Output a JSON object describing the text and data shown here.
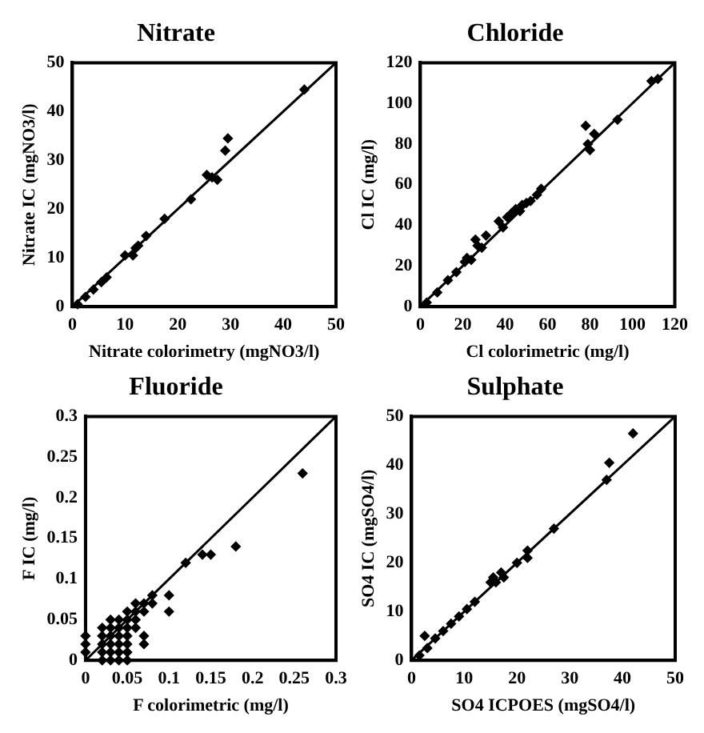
{
  "chart_data": [
    {
      "type": "scatter",
      "title": "Nitrate",
      "xlabel": "Nitrate colorimetry (mgNO3/l)",
      "ylabel": "Nitrate IC (mgNO3/l)",
      "xlim": [
        0,
        50
      ],
      "ylim": [
        0,
        50
      ],
      "xticks": [
        0,
        10,
        20,
        30,
        40,
        50
      ],
      "yticks": [
        0,
        10,
        20,
        30,
        40,
        50
      ],
      "grid": false,
      "marker": "diamond",
      "series": [
        {
          "color": "#000000",
          "x": [
            1,
            2.5,
            4,
            5.5,
            6.5,
            10,
            11.5,
            12,
            12.5,
            14,
            17.5,
            22.5,
            25.5,
            26.5,
            27.5,
            29,
            29.5,
            44
          ],
          "values": [
            0.5,
            2,
            3.5,
            5,
            6,
            10.5,
            10.5,
            12,
            12.5,
            14.5,
            18,
            22,
            27,
            26.5,
            26,
            32,
            34.5,
            44.5
          ]
        },
        {
          "type": "line",
          "color": "#000000",
          "marker": "none",
          "line_style": "solid",
          "x": [
            0,
            50
          ],
          "values": [
            0,
            50
          ]
        }
      ]
    },
    {
      "type": "scatter",
      "title": "Chloride",
      "xlabel": "Cl colorimetric (mg/l)",
      "ylabel": "Cl IC (mg/l)",
      "xlim": [
        0,
        120
      ],
      "ylim": [
        0,
        120
      ],
      "xticks": [
        0,
        20,
        40,
        60,
        80,
        100,
        120
      ],
      "yticks": [
        0,
        20,
        40,
        60,
        80,
        100,
        120
      ],
      "grid": false,
      "marker": "diamond",
      "series": [
        {
          "color": "#000000",
          "x": [
            3,
            8,
            13,
            17,
            21,
            22,
            24,
            26,
            27,
            29,
            31,
            37,
            39,
            41,
            43,
            45,
            47,
            48,
            50,
            52,
            55,
            57,
            78,
            79,
            80,
            82,
            93,
            109,
            112
          ],
          "values": [
            2,
            7,
            13,
            17,
            22,
            24,
            23,
            33,
            30,
            29,
            35,
            42,
            39,
            44,
            46,
            48,
            47,
            50,
            51,
            52,
            55,
            58,
            89,
            80,
            77,
            85,
            92,
            111,
            112
          ]
        },
        {
          "type": "line",
          "color": "#000000",
          "marker": "none",
          "line_style": "solid",
          "x": [
            0,
            120
          ],
          "values": [
            0,
            120
          ]
        }
      ]
    },
    {
      "type": "scatter",
      "title": "Fluoride",
      "xlabel": "F colorimetric (mg/l)",
      "ylabel": "F IC (mg/l)",
      "xlim": [
        0,
        0.3
      ],
      "ylim": [
        0,
        0.3
      ],
      "xticks": [
        0,
        0.05,
        0.1,
        0.15,
        0.2,
        0.25,
        0.3
      ],
      "yticks": [
        0,
        0.05,
        0.1,
        0.15,
        0.2,
        0.25,
        0.3
      ],
      "grid": false,
      "marker": "diamond",
      "series": [
        {
          "color": "#000000",
          "x": [
            0,
            0,
            0,
            0.02,
            0.02,
            0.02,
            0.02,
            0.02,
            0.03,
            0.03,
            0.03,
            0.03,
            0.03,
            0.03,
            0.04,
            0.04,
            0.04,
            0.04,
            0.04,
            0.04,
            0.05,
            0.05,
            0.05,
            0.05,
            0.05,
            0.05,
            0.05,
            0.06,
            0.06,
            0.06,
            0.06,
            0.07,
            0.07,
            0.07,
            0.07,
            0.08,
            0.08,
            0.1,
            0.1,
            0.12,
            0.14,
            0.15,
            0.18,
            0.26
          ],
          "values": [
            0.01,
            0.02,
            0.03,
            0,
            0.01,
            0.02,
            0.03,
            0.04,
            0,
            0.01,
            0.02,
            0.03,
            0.04,
            0.05,
            0,
            0.01,
            0.02,
            0.03,
            0.04,
            0.05,
            0,
            0.01,
            0.02,
            0.03,
            0.04,
            0.05,
            0.06,
            0.04,
            0.05,
            0.06,
            0.07,
            0.02,
            0.03,
            0.06,
            0.07,
            0.07,
            0.08,
            0.06,
            0.08,
            0.12,
            0.13,
            0.13,
            0.14,
            0.23
          ]
        },
        {
          "type": "line",
          "color": "#000000",
          "marker": "none",
          "line_style": "solid",
          "x": [
            0,
            0.3
          ],
          "values": [
            0,
            0.3
          ]
        }
      ]
    },
    {
      "type": "scatter",
      "title": "Sulphate",
      "xlabel": "SO4 ICPOES (mgSO4/l)",
      "ylabel": "SO4 IC (mgSO4/l)",
      "xlim": [
        0,
        50
      ],
      "ylim": [
        0,
        50
      ],
      "xticks": [
        0,
        10,
        20,
        30,
        40,
        50
      ],
      "yticks": [
        0,
        10,
        20,
        30,
        40,
        50
      ],
      "grid": false,
      "marker": "diamond",
      "series": [
        {
          "color": "#000000",
          "x": [
            1.5,
            2.5,
            3,
            4.5,
            6,
            7.5,
            9,
            10.5,
            12,
            15,
            15.5,
            16,
            17,
            17.5,
            20,
            22,
            22,
            27,
            37,
            37.5,
            42
          ],
          "values": [
            1,
            5,
            2.5,
            4.5,
            6,
            7.5,
            9,
            10.5,
            12,
            16,
            17,
            16,
            18,
            17,
            20,
            22.5,
            21,
            27,
            37,
            40.5,
            46.5
          ]
        },
        {
          "type": "line",
          "color": "#000000",
          "marker": "none",
          "line_style": "solid",
          "x": [
            0,
            50
          ],
          "values": [
            0,
            50
          ]
        }
      ]
    }
  ]
}
